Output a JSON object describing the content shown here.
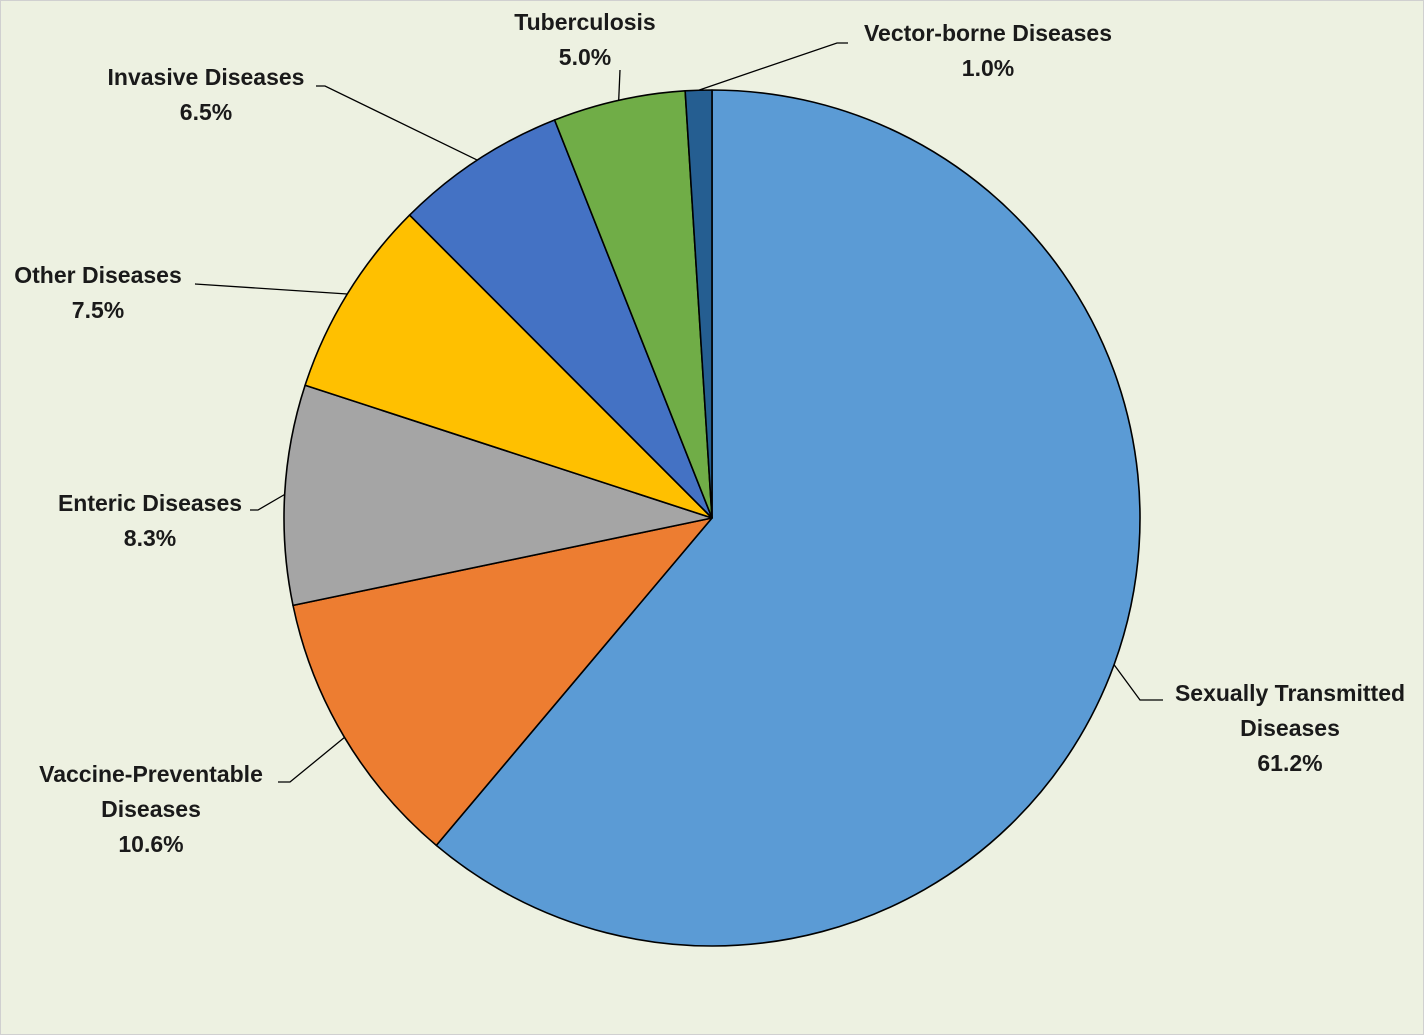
{
  "chart_data": {
    "type": "pie",
    "title": "",
    "slices": [
      {
        "label": [
          "Sexually Transmitted",
          "Diseases"
        ],
        "value": 61.2,
        "value_label": "61.2%",
        "color": "#5b9bd5"
      },
      {
        "label": [
          "Vaccine-Preventable",
          "Diseases"
        ],
        "value": 10.6,
        "value_label": "10.6%",
        "color": "#ed7d31"
      },
      {
        "label": [
          "Enteric Diseases"
        ],
        "value": 8.3,
        "value_label": "8.3%",
        "color": "#a5a5a5"
      },
      {
        "label": [
          "Other Diseases"
        ],
        "value": 7.5,
        "value_label": "7.5%",
        "color": "#ffc000"
      },
      {
        "label": [
          "Invasive Diseases"
        ],
        "value": 6.5,
        "value_label": "6.5%",
        "color": "#4472c4"
      },
      {
        "label": [
          "Tuberculosis"
        ],
        "value": 5.0,
        "value_label": "5.0%",
        "color": "#70ad47"
      },
      {
        "label": [
          "Vector-borne Diseases"
        ],
        "value": 1.0,
        "value_label": "1.0%",
        "color": "#255e91"
      }
    ],
    "start_angle": "12 o'clock",
    "direction": "clockwise",
    "legend": "none",
    "data_labels": "outside with leader lines",
    "background_color": "#edf1e1"
  }
}
